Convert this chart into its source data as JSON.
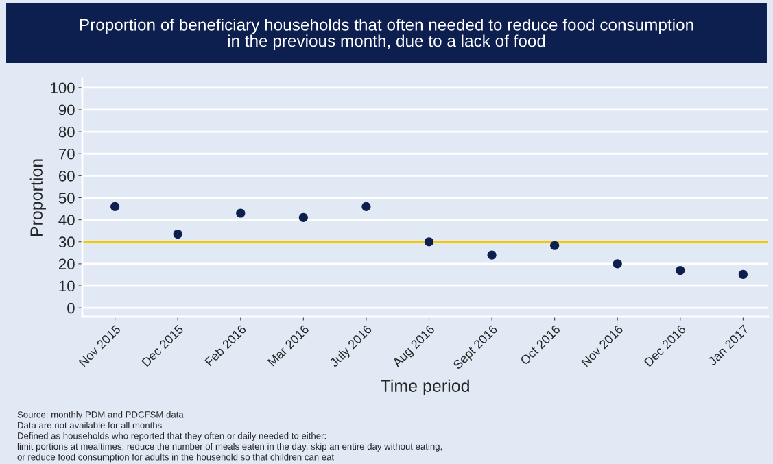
{
  "chart_data": {
    "type": "scatter",
    "title": "Proportion of beneficiary households that often needed to reduce food consumption\nin the previous month, due to a lack of food",
    "xlabel": "Time period",
    "ylabel": "Proportion",
    "categories": [
      "Nov 2015",
      "Dec 2015",
      "Feb 2016",
      "Mar 2016",
      "July 2016",
      "Aug 2016",
      "Sept 2016",
      "Oct 2016",
      "Nov 2016",
      "Dec 2016",
      "Jan 2017"
    ],
    "series": [
      {
        "color": "#0d1f4f",
        "values": [
          46,
          33.5,
          43,
          41,
          46,
          30,
          24,
          28.3,
          20,
          17,
          15.2
        ]
      }
    ],
    "ylim": [
      -4,
      104
    ],
    "yticks": [
      0,
      10,
      20,
      30,
      40,
      50,
      60,
      70,
      80,
      90,
      100
    ],
    "ref_lines": [
      {
        "axis": "y",
        "value": 29.8,
        "color": "#f5c800"
      }
    ],
    "grid": "y",
    "marker": "circle",
    "legend": false,
    "annotations": [
      "Source: monthly PDM and PDCFSM data",
      "Data are not available for all months",
      "Defined as households who reported that they often or daily needed to either:",
      "limit portions at mealtimes, reduce the number of meals eaten in the day, skip an entire day without eating,",
      "or reduce food consumption for adults in the household so that children can eat"
    ]
  }
}
